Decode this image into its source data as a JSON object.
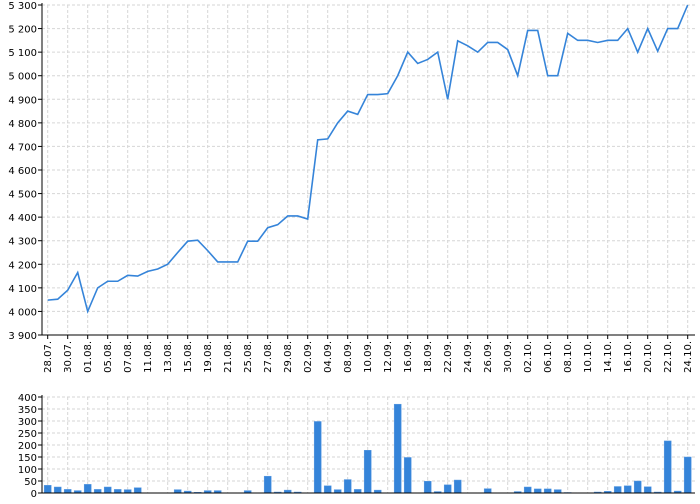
{
  "chart_data": [
    {
      "type": "line",
      "x_tick_labels": [
        "28.07.",
        "30.07.",
        "01.08.",
        "05.08.",
        "07.08.",
        "11.08.",
        "13.08.",
        "15.08.",
        "19.08.",
        "21.08.",
        "25.08.",
        "27.08.",
        "29.08.",
        "02.09.",
        "04.09.",
        "08.09.",
        "10.09.",
        "12.09.",
        "16.09.",
        "18.09.",
        "22.09.",
        "24.09.",
        "26.09.",
        "30.09.",
        "02.10.",
        "06.10.",
        "08.10.",
        "10.10.",
        "14.10.",
        "16.10.",
        "20.10.",
        "22.10.",
        "24.10."
      ],
      "points_per_tick": 2,
      "values": [
        4048,
        4052,
        4090,
        4165,
        4000,
        4100,
        4128,
        4128,
        4153,
        4150,
        4170,
        4180,
        4200,
        4250,
        4298,
        4302,
        4258,
        4210,
        4210,
        4210,
        4298,
        4298,
        4355,
        4368,
        4405,
        4405,
        4392,
        4728,
        4732,
        4800,
        4850,
        4836,
        4920,
        4920,
        4924,
        5000,
        5100,
        5052,
        5069,
        5100,
        4900,
        5148,
        5127,
        5100,
        5141,
        5141,
        5111,
        5000,
        5192,
        5192,
        5000,
        5000,
        5180,
        5150,
        5150,
        5141,
        5150,
        5150,
        5200,
        5100,
        5200,
        5104,
        5200,
        5200,
        5300
      ],
      "y_tick_labels": [
        "3 900",
        "4 000",
        "4 100",
        "4 200",
        "4 300",
        "4 400",
        "4 500",
        "4 600",
        "4 700",
        "4 800",
        "4 900",
        "5 000",
        "5 100",
        "5 200",
        "5 300"
      ],
      "ylim": [
        3900,
        5300
      ],
      "grid": true,
      "color": "#3584d9"
    },
    {
      "type": "bar",
      "values": [
        32,
        25,
        15,
        10,
        36,
        15,
        25,
        15,
        14,
        22,
        0,
        0,
        0,
        14,
        8,
        3,
        10,
        10,
        0,
        0,
        10,
        0,
        70,
        4,
        12,
        4,
        0,
        298,
        30,
        14,
        56,
        15,
        178,
        12,
        0,
        370,
        148,
        0,
        49,
        6,
        34,
        54,
        0,
        0,
        18,
        0,
        0,
        6,
        25,
        17,
        17,
        14,
        2,
        0,
        0,
        4,
        7,
        27,
        30,
        50,
        26,
        4,
        217,
        8,
        150
      ],
      "y_tick_labels": [
        "0",
        "50",
        "100",
        "150",
        "200",
        "250",
        "300",
        "350",
        "400"
      ],
      "ylim": [
        0,
        400
      ],
      "grid": true,
      "color": "#3584d9"
    }
  ]
}
